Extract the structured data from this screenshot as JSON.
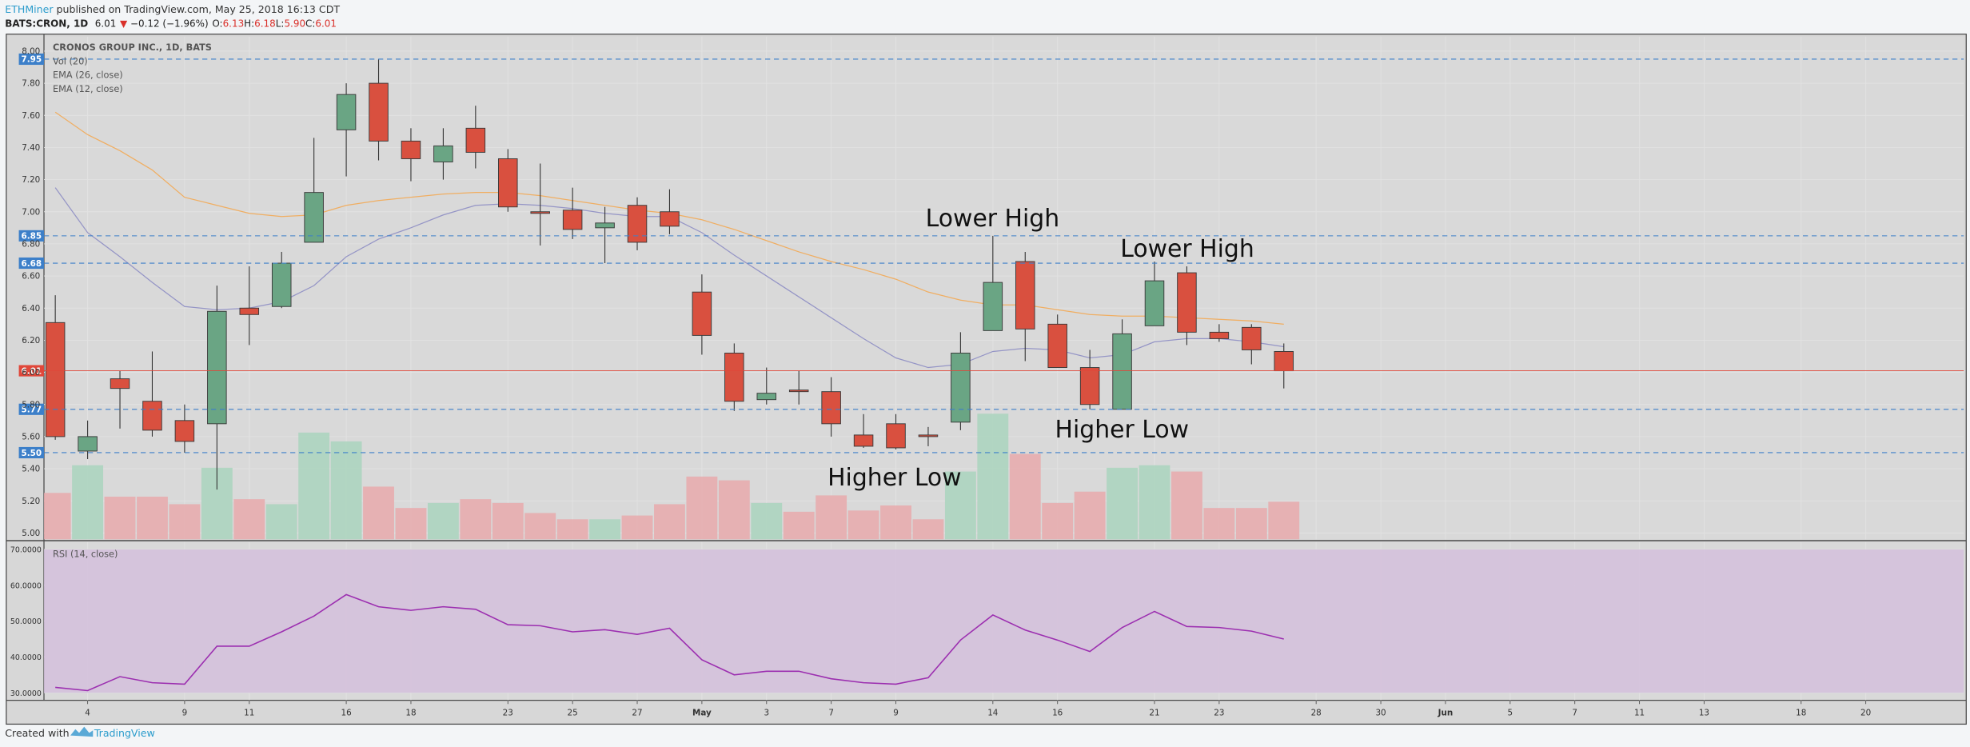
{
  "header": {
    "author": "ETHMiner",
    "published": "published on TradingView.com, May 25, 2018 16:13 CDT",
    "symbol": "BATS:CRON, 1D",
    "last": "6.01",
    "change": "−0.12 (−1.96%)",
    "ohlc": [
      {
        "key": "O:",
        "value": "6.13"
      },
      {
        "key": "H:",
        "value": "6.18"
      },
      {
        "key": "L:",
        "value": "5.90"
      },
      {
        "key": "C:",
        "value": "6.01"
      }
    ]
  },
  "footer": {
    "text": "Created with",
    "brand": "TradingView"
  },
  "annotations": [
    "Lower High",
    "Lower High",
    "Higher Low",
    "Higher Low"
  ],
  "chart_data": [
    {
      "type": "candlestick",
      "title": "CRONOS GROUP INC., 1D, BATS",
      "candles": {
        "open": [
          6.31,
          5.51,
          5.96,
          5.82,
          5.7,
          5.68,
          6.4,
          6.41,
          6.81,
          7.51,
          7.8,
          7.44,
          7.31,
          7.52,
          7.33,
          7.0,
          7.01,
          6.9,
          7.04,
          7.0,
          6.5,
          6.12,
          5.83,
          5.89,
          5.88,
          5.61,
          5.68,
          5.61,
          5.69,
          6.26,
          6.69,
          6.3,
          6.03,
          5.77,
          6.29,
          6.62,
          6.25,
          6.28,
          6.13
        ],
        "high": [
          6.48,
          5.7,
          6.01,
          6.13,
          5.8,
          6.54,
          6.66,
          6.75,
          7.46,
          7.8,
          7.95,
          7.52,
          7.52,
          7.66,
          7.39,
          7.3,
          7.15,
          7.03,
          7.09,
          7.14,
          6.61,
          6.18,
          6.03,
          6.01,
          5.97,
          5.74,
          5.74,
          5.66,
          6.25,
          6.85,
          6.75,
          6.36,
          6.14,
          6.33,
          6.69,
          6.66,
          6.3,
          6.3,
          6.18
        ],
        "low": [
          5.58,
          5.46,
          5.65,
          5.6,
          5.5,
          5.27,
          6.17,
          6.4,
          6.81,
          7.22,
          7.32,
          7.19,
          7.2,
          7.27,
          7.0,
          6.79,
          6.83,
          6.68,
          6.76,
          6.86,
          6.11,
          5.76,
          5.8,
          5.8,
          5.6,
          5.53,
          5.52,
          5.54,
          5.64,
          6.26,
          6.07,
          6.03,
          5.77,
          5.77,
          6.29,
          6.17,
          6.19,
          6.05,
          5.9
        ],
        "close": [
          5.6,
          5.6,
          5.9,
          5.64,
          5.57,
          6.38,
          6.36,
          6.68,
          7.12,
          7.73,
          7.44,
          7.33,
          7.41,
          7.37,
          7.03,
          6.99,
          6.89,
          6.93,
          6.81,
          6.91,
          6.23,
          5.82,
          5.87,
          5.88,
          5.68,
          5.54,
          5.53,
          5.6,
          6.12,
          6.56,
          6.27,
          6.03,
          5.8,
          6.24,
          6.57,
          6.25,
          6.21,
          6.14,
          6.01
        ],
        "up_color": "#6aa584",
        "down_color": "#d9503f"
      },
      "volume": {
        "name": "Vol (20)",
        "values": [
          37,
          59,
          34,
          34,
          28,
          57,
          32,
          28,
          85,
          78,
          42,
          25,
          29,
          32,
          29,
          21,
          16,
          16,
          19,
          28,
          50,
          47,
          29,
          22,
          35,
          23,
          27,
          16,
          54,
          100,
          68,
          29,
          38,
          57,
          59,
          54,
          25,
          25,
          30
        ],
        "up_color": "#a9d3bd",
        "down_color": "#e7a9ab"
      },
      "series": [
        {
          "name": "EMA (26, close)",
          "color": "#f0ae62",
          "values": [
            7.62,
            7.48,
            7.38,
            7.26,
            7.09,
            7.04,
            6.99,
            6.97,
            6.98,
            7.04,
            7.07,
            7.09,
            7.11,
            7.12,
            7.12,
            7.1,
            7.07,
            7.04,
            7.01,
            6.99,
            6.95,
            6.89,
            6.82,
            6.75,
            6.69,
            6.64,
            6.58,
            6.5,
            6.45,
            6.42,
            6.42,
            6.39,
            6.36,
            6.35,
            6.35,
            6.34,
            6.33,
            6.32,
            6.3
          ]
        },
        {
          "name": "EMA (12, close)",
          "color": "#9595c6",
          "values": [
            7.15,
            6.87,
            6.72,
            6.56,
            6.41,
            6.39,
            6.4,
            6.44,
            6.54,
            6.72,
            6.83,
            6.9,
            6.98,
            7.04,
            7.05,
            7.04,
            7.02,
            6.99,
            6.97,
            6.97,
            6.87,
            6.73,
            6.6,
            6.47,
            6.34,
            6.21,
            6.09,
            6.03,
            6.05,
            6.13,
            6.15,
            6.14,
            6.09,
            6.11,
            6.19,
            6.21,
            6.21,
            6.19,
            6.16
          ]
        }
      ],
      "levels": [
        7.95,
        6.85,
        6.68,
        5.77,
        {
          "value": 5.5,
          "label": "5.50"
        }
      ],
      "level_color": "#3c7fc9",
      "last_price": 6.01,
      "last_color": "#e0473a",
      "xlim": [
        -0.35,
        59.03
      ],
      "xticks": [
        {
          "value": 1,
          "label": "4"
        },
        {
          "value": 4,
          "label": "9"
        },
        {
          "value": 6,
          "label": "11"
        },
        {
          "value": 9,
          "label": "16"
        },
        {
          "value": 11,
          "label": "18"
        },
        {
          "value": 14,
          "label": "23"
        },
        {
          "value": 16,
          "label": "25"
        },
        {
          "value": 18,
          "label": "27"
        },
        {
          "value": 20,
          "label": "May"
        },
        {
          "value": 22,
          "label": "3"
        },
        {
          "value": 24,
          "label": "7"
        },
        {
          "value": 26,
          "label": "9"
        },
        {
          "value": 29,
          "label": "14"
        },
        {
          "value": 31,
          "label": "16"
        },
        {
          "value": 34,
          "label": "21"
        },
        {
          "value": 36,
          "label": "23"
        },
        {
          "value": 39,
          "label": "28"
        },
        {
          "value": 41,
          "label": "30"
        },
        {
          "value": 43,
          "label": "Jun"
        },
        {
          "value": 45,
          "label": "5"
        },
        {
          "value": 47,
          "label": "7"
        },
        {
          "value": 49,
          "label": "11"
        },
        {
          "value": 51,
          "label": "13"
        },
        {
          "value": 54,
          "label": "18"
        },
        {
          "value": 56,
          "label": "20"
        }
      ],
      "ylim": [
        4.96,
        8.09
      ],
      "yticks": [
        {
          "value": 5,
          "label": "5.00"
        },
        {
          "value": 5.2,
          "label": "5.20"
        },
        {
          "value": 5.4,
          "label": "5.40"
        },
        {
          "value": 5.6,
          "label": "5.60"
        },
        {
          "value": 5.8,
          "label": "5.80"
        },
        {
          "value": 6,
          "label": "6.00"
        },
        {
          "value": 6.2,
          "label": "6.20"
        },
        {
          "value": 6.4,
          "label": "6.40"
        },
        {
          "value": 6.6,
          "label": "6.60"
        },
        {
          "value": 6.8,
          "label": "6.80"
        },
        {
          "value": 7,
          "label": "7.00"
        },
        {
          "value": 7.2,
          "label": "7.20"
        },
        {
          "value": 7.4,
          "label": "7.40"
        },
        {
          "value": 7.6,
          "label": "7.60"
        },
        {
          "value": 7.8,
          "label": "7.80"
        },
        {
          "value": 8,
          "label": "8.00"
        }
      ],
      "grid": true
    },
    {
      "type": "line",
      "title": "RSI (14, close)",
      "color": "#9c2fb0",
      "values": [
        31.5,
        30.6,
        34.5,
        32.8,
        32.4,
        43,
        43,
        47,
        51.4,
        57.4,
        54,
        53,
        54,
        53.3,
        49,
        48.7,
        47,
        47.6,
        46.3,
        48,
        39.2,
        35,
        36,
        36,
        33.9,
        32.8,
        32.4,
        34.2,
        44.7,
        51.7,
        47.5,
        44.7,
        41.5,
        48.2,
        52.7,
        48.5,
        48.2,
        47.2,
        45
      ],
      "band": [
        30,
        70
      ],
      "band_color": "#d4c0dc",
      "ylim": [
        27.9,
        72.1
      ],
      "yticks": [
        {
          "value": 30,
          "label": "30.0000"
        },
        {
          "value": 40,
          "label": "40.0000"
        },
        {
          "value": 50,
          "label": "50.0000"
        },
        {
          "value": 60,
          "label": "60.0000"
        },
        {
          "value": 70,
          "label": "70.0000"
        }
      ],
      "grid": true
    }
  ]
}
